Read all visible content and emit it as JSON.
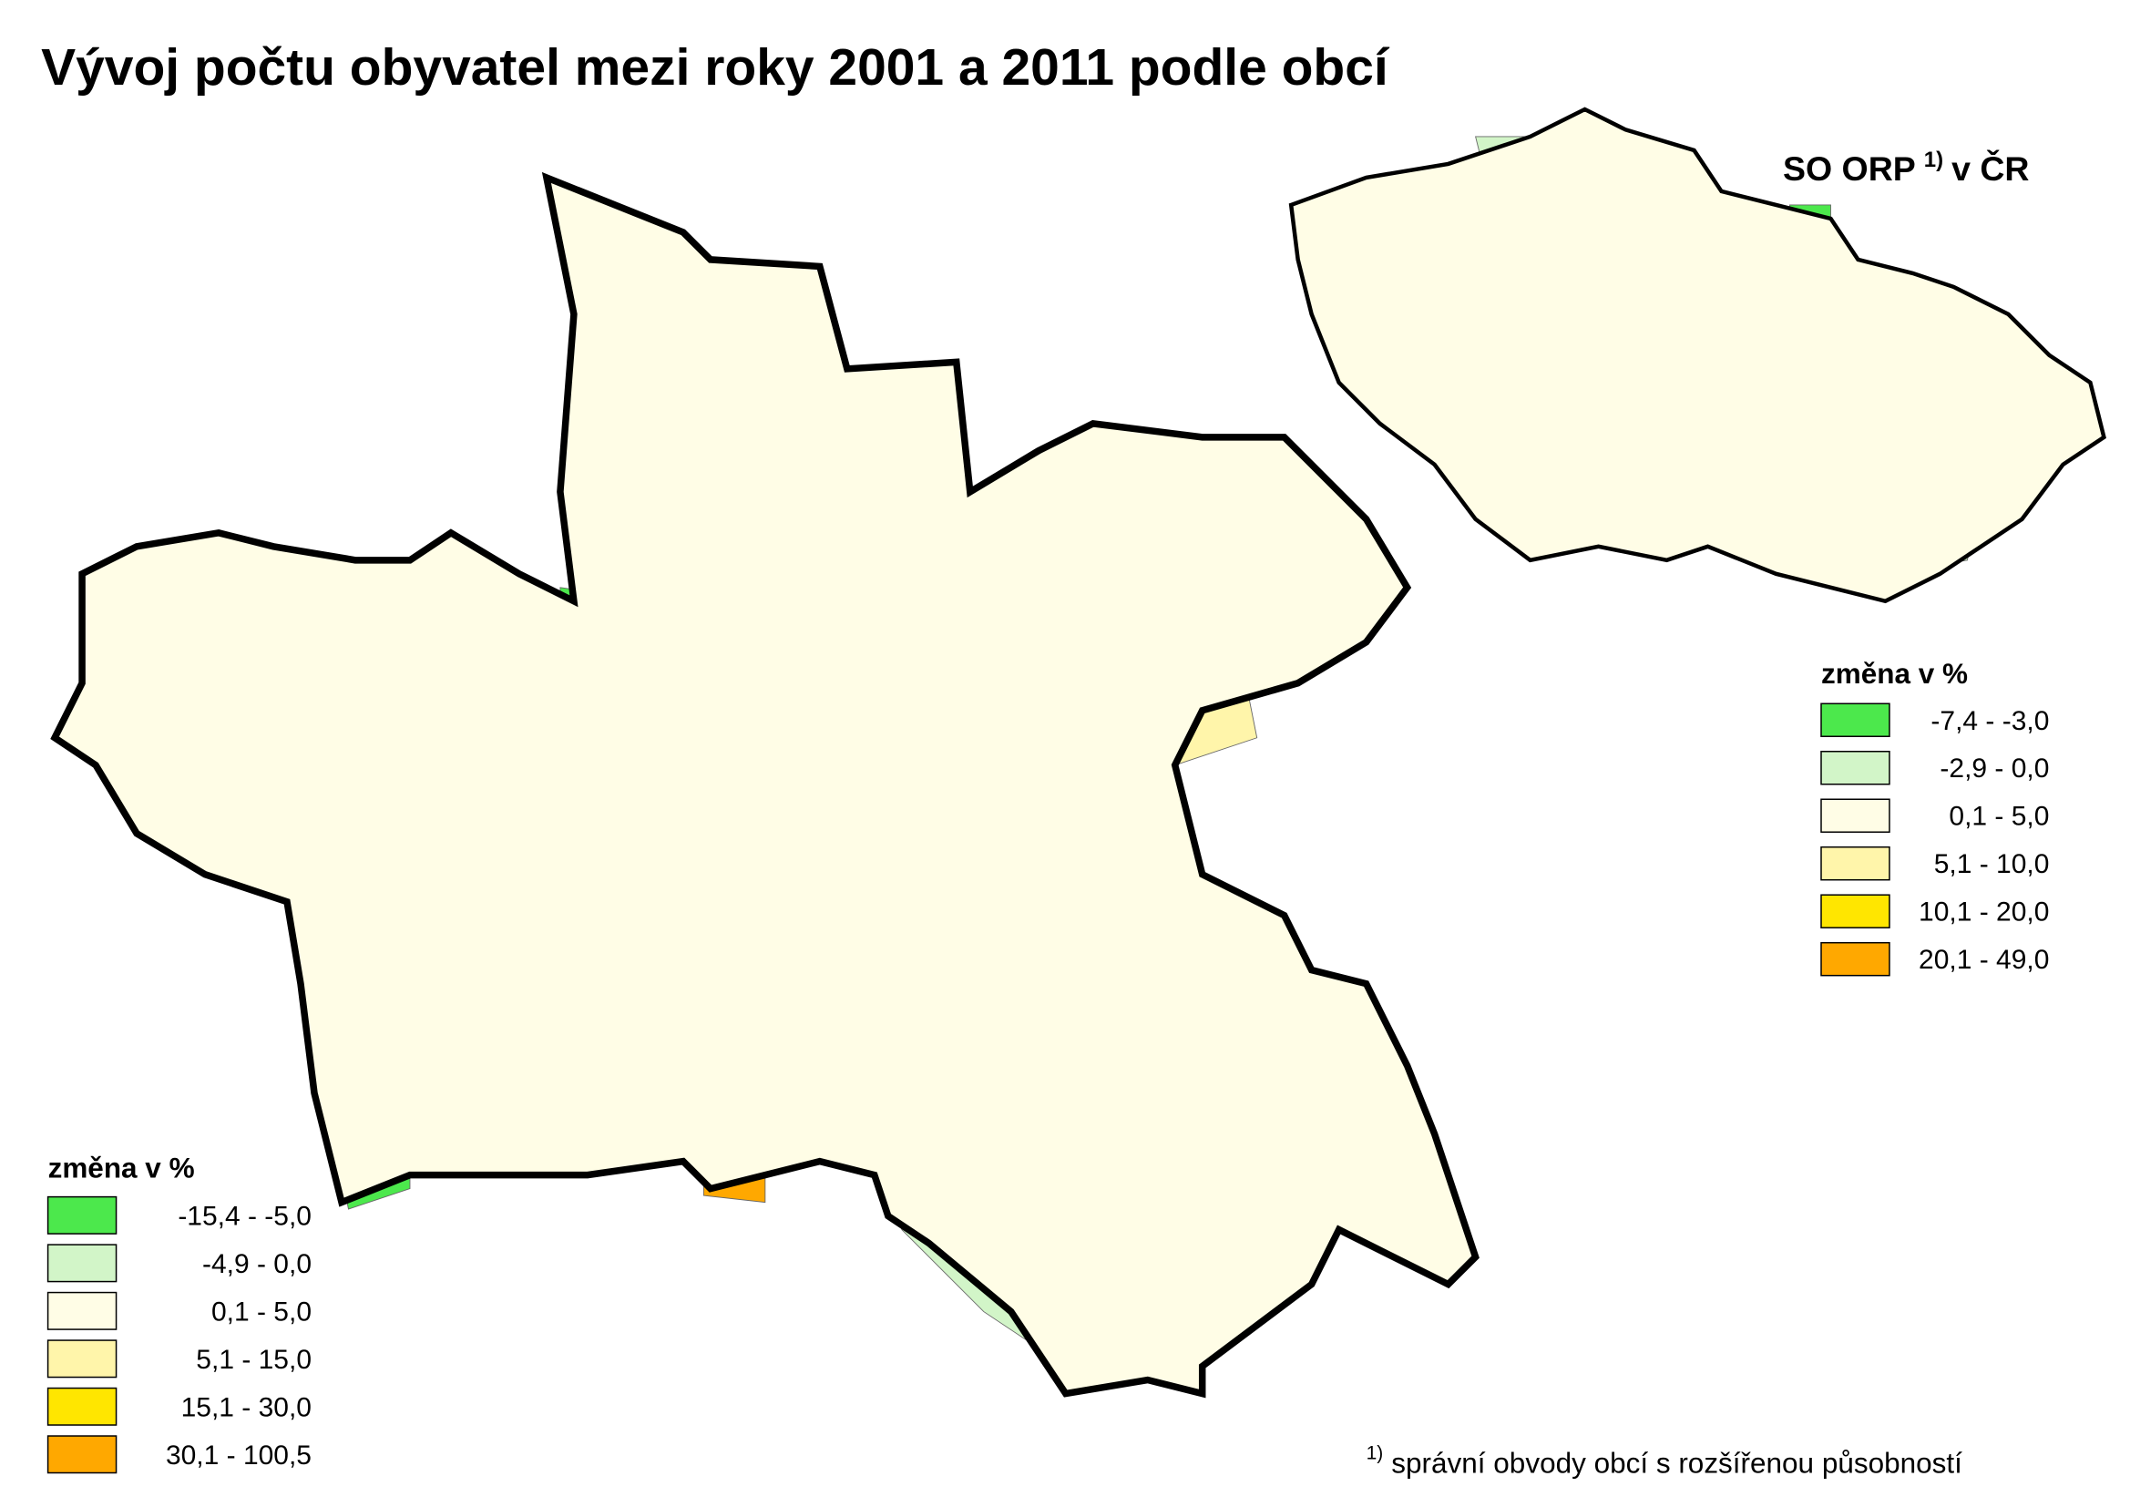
{
  "title": "Vývoj počtu obyvatel mezi roky 2001 a 2011 podle obcí",
  "inset": {
    "title": "SO ORP",
    "superscript": "1)",
    "title_suffix": "v ČR"
  },
  "legend_main": {
    "title": "změna v %",
    "items": [
      {
        "label": "-15,4 -   -5,0",
        "color": "#4ce84c"
      },
      {
        "label": "-4,9 -    0,0",
        "color": "#d2f5c8"
      },
      {
        "label": "0,1 -    5,0",
        "color": "#fffde6"
      },
      {
        "label": "5,1 -  15,0",
        "color": "#fff5aa"
      },
      {
        "label": "15,1 -  30,0",
        "color": "#ffe600"
      },
      {
        "label": "30,1 - 100,5",
        "color": "#ffa800"
      }
    ]
  },
  "legend_inset": {
    "title": "změna v %",
    "items": [
      {
        "label": "-7,4 -  -3,0",
        "color": "#4ce84c"
      },
      {
        "label": "-2,9 -   0,0",
        "color": "#d2f5c8"
      },
      {
        "label": "0,1 -   5,0",
        "color": "#fffde6"
      },
      {
        "label": "5,1 - 10,0",
        "color": "#fff5aa"
      },
      {
        "label": "10,1 - 20,0",
        "color": "#ffe600"
      },
      {
        "label": "20,1 - 49,0",
        "color": "#ffa800"
      }
    ]
  },
  "footnote": {
    "marker": "1)",
    "text": "správní obvody obcí s rozšířenou působností"
  }
}
